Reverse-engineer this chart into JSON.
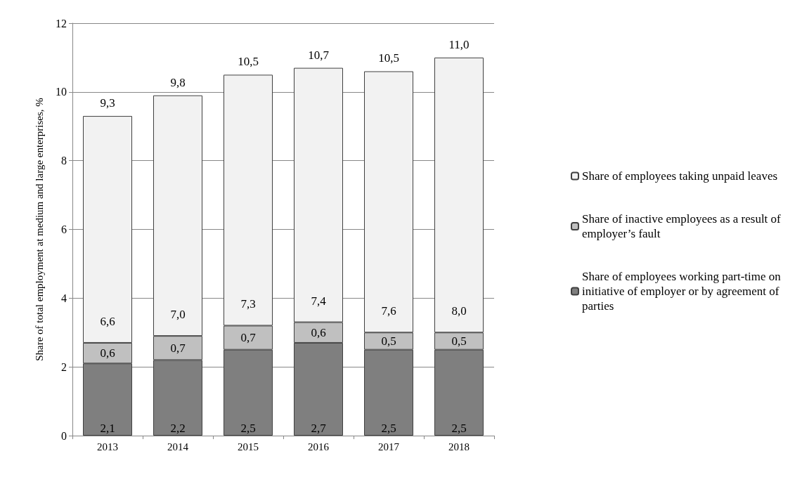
{
  "chart_data": {
    "type": "bar",
    "stacked": true,
    "categories": [
      "2013",
      "2014",
      "2015",
      "2016",
      "2017",
      "2018"
    ],
    "ylabel": "Share of total employment at medium and large enterprises, %",
    "ylim": [
      0,
      12
    ],
    "yticks": [
      0,
      2,
      4,
      6,
      8,
      10,
      12
    ],
    "grid": "y",
    "legend": "right",
    "series": [
      {
        "name": "Share of employees working part-time on initiative of employer or by agreement of parties",
        "color": "#7f7f7f",
        "values": [
          2.1,
          2.2,
          2.5,
          2.7,
          2.5,
          2.5
        ],
        "value_labels": [
          "2,1",
          "2,2",
          "2,5",
          "2,7",
          "2,5",
          "2,5"
        ]
      },
      {
        "name": "Share of inactive employees as a result of employer’s fault",
        "color": "#c0c0c0",
        "values": [
          0.6,
          0.7,
          0.7,
          0.6,
          0.5,
          0.5
        ],
        "value_labels": [
          "0,6",
          "0,7",
          "0,7",
          "0,6",
          "0,5",
          "0,5"
        ]
      },
      {
        "name": "Share of employees taking unpaid leaves",
        "color": "#f2f2f2",
        "values": [
          6.6,
          7.0,
          7.3,
          7.4,
          7.6,
          8.0
        ],
        "value_labels": [
          "6,6",
          "7,0",
          "7,3",
          "7,4",
          "7,6",
          "8,0"
        ]
      }
    ],
    "totals": [
      "9,3",
      "9,8",
      "10,5",
      "10,7",
      "10,5",
      "11,0"
    ]
  }
}
